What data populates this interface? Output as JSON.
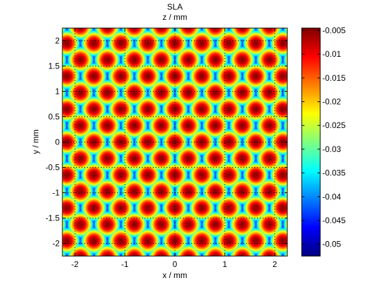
{
  "chart_data": {
    "type": "heatmap",
    "title": "SLA",
    "subtitle": "z / mm",
    "xlabel": "x / mm",
    "ylabel": "y / mm",
    "xlim": [
      -2.25,
      2.25
    ],
    "ylim": [
      -2.25,
      2.25
    ],
    "xticks": [
      -2,
      -1,
      0,
      1,
      2
    ],
    "xtick_labels": [
      "-2",
      "-1",
      "0",
      "1",
      "2"
    ],
    "yticks": [
      2,
      1.5,
      1,
      0.5,
      0,
      -0.5,
      -1,
      -1.5,
      -2
    ],
    "ytick_labels": [
      "2",
      "1.5",
      "1",
      "0.5",
      "0",
      "-0.5",
      "-1",
      "-1.5",
      "-2"
    ],
    "grid": true,
    "grid_style": "dotted",
    "colormap": "jet",
    "colorbar": {
      "range": [
        -0.0525,
        -0.0045
      ],
      "ticks": [
        -0.005,
        -0.01,
        -0.015,
        -0.02,
        -0.025,
        -0.03,
        -0.035,
        -0.04,
        -0.045,
        -0.05
      ],
      "tick_labels": [
        "-0.005",
        "-0.01",
        "-0.015",
        "-0.02",
        "-0.025",
        "-0.03",
        "-0.035",
        "-0.04",
        "-0.045",
        "-0.05"
      ]
    },
    "pattern": {
      "lattice": "hexagonal",
      "column_spacing_x": 0.54,
      "row_spacing_y": 0.325,
      "even_row_x_offset": 0.0,
      "odd_row_x_offset": 0.27,
      "lens_radius": 0.3,
      "z_center": -0.005,
      "z_edge": -0.0525
    }
  }
}
